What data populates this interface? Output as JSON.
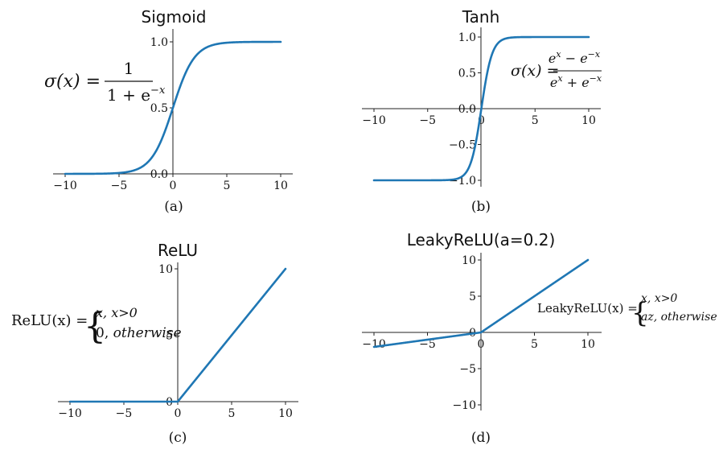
{
  "colors": {
    "line": "#1f77b4",
    "axis": "#222222"
  },
  "chart_data": [
    {
      "type": "line",
      "title": "Sigmoid",
      "caption": "(a)",
      "function": "sigmoid",
      "x": [
        -10,
        -8,
        -6,
        -5,
        -4,
        -3,
        -2,
        -1,
        0,
        1,
        2,
        3,
        4,
        5,
        6,
        8,
        10
      ],
      "series": [
        {
          "values": [
            0.0,
            0.0003,
            0.0025,
            0.0067,
            0.018,
            0.047,
            0.119,
            0.269,
            0.5,
            0.731,
            0.881,
            0.953,
            0.982,
            0.993,
            0.998,
            0.9997,
            1.0
          ]
        }
      ],
      "xlim": [
        -10,
        10
      ],
      "ylim": [
        0,
        1
      ],
      "xticks": [
        "−10",
        "−5",
        "0",
        "5",
        "10"
      ],
      "yticks": [
        "0.0",
        "0.5",
        "1.0"
      ],
      "formula": {
        "lhs": "σ(x) =",
        "numerator": "1",
        "denominator": "1 + e",
        "denominator_exp": "−x"
      }
    },
    {
      "type": "line",
      "title": "Tanh",
      "caption": "(b)",
      "function": "tanh",
      "x": [
        -10,
        -4,
        -3,
        -2,
        -1.5,
        -1,
        -0.5,
        0,
        0.5,
        1,
        1.5,
        2,
        3,
        4,
        10
      ],
      "series": [
        {
          "values": [
            -1.0,
            -0.999,
            -0.995,
            -0.964,
            -0.905,
            -0.762,
            -0.462,
            0.0,
            0.462,
            0.762,
            0.905,
            0.964,
            0.995,
            0.999,
            1.0
          ]
        }
      ],
      "xlim": [
        -10,
        10
      ],
      "ylim": [
        -1,
        1
      ],
      "xticks": [
        "−10",
        "−5",
        "0",
        "5",
        "10"
      ],
      "yticks": [
        "−1.0",
        "−0.5",
        "0.0",
        "0.5",
        "1.0"
      ],
      "formula": {
        "lhs": "σ(x) =",
        "numerator": "e",
        "numerator_exp1": "x",
        "numerator_mid": " − e",
        "numerator_exp2": "−x",
        "denominator": "e",
        "denominator_exp1": "x",
        "denominator_mid": " + e",
        "denominator_exp2": "−x"
      }
    },
    {
      "type": "line",
      "title": "ReLU",
      "caption": "(c)",
      "function": "relu",
      "x": [
        -10,
        0,
        10
      ],
      "series": [
        {
          "values": [
            0,
            0,
            10
          ]
        }
      ],
      "xlim": [
        -10,
        10
      ],
      "ylim": [
        0,
        10
      ],
      "xticks": [
        "−10",
        "−5",
        "0",
        "5",
        "10"
      ],
      "yticks": [
        "0",
        "5",
        "10"
      ],
      "formula": {
        "lhs": "ReLU(x) =",
        "case1": "x, x>0",
        "case2_value": "0, ",
        "case2_cond": "otherwise"
      }
    },
    {
      "type": "line",
      "title": "LeakyReLU(a=0.2)",
      "caption": "(d)",
      "function": "leaky_relu",
      "x": [
        -10,
        0,
        10
      ],
      "series": [
        {
          "values": [
            -2,
            0,
            10
          ]
        }
      ],
      "xlim": [
        -10,
        10
      ],
      "ylim": [
        -10,
        10
      ],
      "xticks": [
        "−10",
        "−5",
        "0",
        "5",
        "10"
      ],
      "yticks": [
        "−10",
        "−5",
        "0",
        "5",
        "10"
      ],
      "formula": {
        "lhs": "LeakyReLU(x) =",
        "case1": "x, x>0",
        "case2": "az, otherwise"
      }
    }
  ]
}
